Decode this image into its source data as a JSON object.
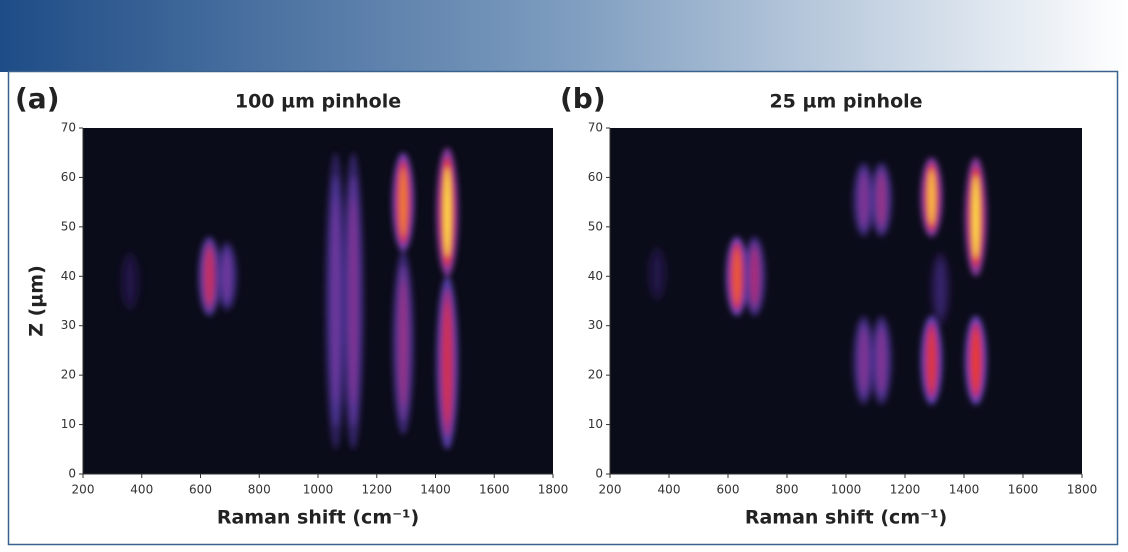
{
  "chart_data": [
    {
      "type": "heatmap",
      "panel_label": "(a)",
      "title": "100 µm pinhole",
      "xlabel": "Raman shift (cm⁻¹)",
      "ylabel": "Z (µm)",
      "xlim": [
        200,
        1800
      ],
      "ylim": [
        0,
        70
      ],
      "xticks": [
        200,
        400,
        600,
        800,
        1000,
        1200,
        1400,
        1600,
        1800
      ],
      "yticks": [
        0,
        10,
        20,
        30,
        40,
        50,
        60,
        70
      ],
      "background": "#0b0c1a",
      "bands": {
        "x": [
          360,
          630,
          690,
          1060,
          1120,
          1290,
          1290,
          1440,
          1440
        ],
        "z_low": [
          33,
          32,
          33,
          5,
          5,
          45,
          8,
          40,
          5
        ],
        "z_high": [
          45,
          48,
          47,
          65,
          65,
          65,
          45,
          66,
          40
        ],
        "intensity": [
          0.05,
          0.6,
          0.35,
          0.35,
          0.4,
          0.85,
          0.45,
          1.0,
          0.65
        ]
      }
    },
    {
      "type": "heatmap",
      "panel_label": "(b)",
      "title": "25 µm pinhole",
      "xlabel": "Raman shift (cm⁻¹)",
      "xlim": [
        200,
        1800
      ],
      "ylim": [
        0,
        70
      ],
      "xticks": [
        200,
        400,
        600,
        800,
        1000,
        1200,
        1400,
        1600,
        1800
      ],
      "yticks": [
        0,
        10,
        20,
        30,
        40,
        50,
        60,
        70
      ],
      "background": "#0b0c1a",
      "bands": {
        "x": [
          360,
          630,
          690,
          1060,
          1060,
          1120,
          1120,
          1290,
          1290,
          1320,
          1440,
          1440
        ],
        "z_low": [
          35,
          32,
          32,
          48,
          14,
          48,
          14,
          48,
          14,
          30,
          40,
          14
        ],
        "z_high": [
          46,
          48,
          48,
          63,
          32,
          63,
          32,
          64,
          32,
          45,
          64,
          32
        ],
        "intensity": [
          0.05,
          0.8,
          0.5,
          0.4,
          0.4,
          0.45,
          0.4,
          0.95,
          0.7,
          0.15,
          1.0,
          0.75
        ]
      }
    }
  ]
}
